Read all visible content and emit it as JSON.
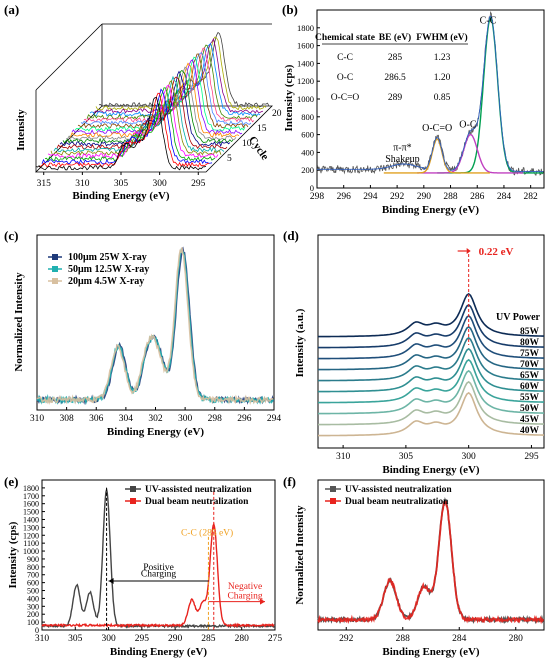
{
  "chart_data": [
    {
      "panel": "(a)",
      "type": "line",
      "title": "",
      "xlabel": "Binding Energy (eV)",
      "ylabel": "Intensity",
      "zlabel": "Cycle",
      "xticks": [
        "315",
        "310",
        "305",
        "300",
        "295"
      ],
      "zticks": [
        "5",
        "10",
        "15",
        "20"
      ],
      "xlim": [
        316,
        294
      ],
      "cycles": 22,
      "peak_positions_ev": [
        304.5,
        302.5,
        300.5
      ],
      "peak_heights": [
        0.33,
        0.32,
        1.0
      ],
      "colors": [
        "#000000",
        "#ff0000",
        "#0000ff",
        "#00aa00",
        "#ff00ff",
        "#888800",
        "#00aaaa",
        "#aa0000",
        "#000088",
        "#008800",
        "#888888",
        "#ff8800",
        "#8800ff",
        "#00ff88",
        "#884400",
        "#4488ff",
        "#ff4488",
        "#448800",
        "#0088ff",
        "#880088",
        "#aaaa00",
        "#444444"
      ]
    },
    {
      "panel": "(b)",
      "type": "line",
      "xlabel": "Binding Energy (eV)",
      "ylabel": "Intensity (cps)",
      "xlim": [
        298,
        281
      ],
      "ylim": [
        0,
        2000
      ],
      "xticks": [
        298,
        296,
        294,
        292,
        290,
        288,
        286,
        284,
        282
      ],
      "yticks": [
        0,
        200,
        400,
        600,
        800,
        1000,
        1200,
        1400,
        1600,
        1800
      ],
      "series": [
        {
          "name": "C-C",
          "center": 285,
          "fwhm": 1.23,
          "height": 1740,
          "color": "#00a050"
        },
        {
          "name": "O-C",
          "center": 286.5,
          "fwhm": 1.2,
          "height": 430,
          "color": "#c040c0"
        },
        {
          "name": "O-C=O",
          "center": 289,
          "fwhm": 0.85,
          "height": 380,
          "color": "#e0a020"
        }
      ],
      "baseline": 170,
      "shakeup": {
        "center": 291.5,
        "height": 60
      },
      "annotations": [
        "C-C",
        "O-C",
        "O-C=O",
        "π-π*",
        "Shakeup"
      ],
      "table": {
        "headers": [
          "Chemical state",
          "BE (eV)",
          "FWHM (eV)"
        ],
        "rows": [
          [
            "C-C",
            "285",
            "1.23"
          ],
          [
            "O-C",
            "286.5",
            "1.20"
          ],
          [
            "O-C=O",
            "289",
            "0.85"
          ]
        ]
      }
    },
    {
      "panel": "(c)",
      "type": "line",
      "xlabel": "Binding Energy (eV)",
      "ylabel": "Normalized Intensity",
      "xlim": [
        310,
        294
      ],
      "xticks": [
        310,
        308,
        306,
        304,
        302,
        300,
        298,
        296,
        294
      ],
      "series": [
        {
          "name": "100μm 25W X-ray",
          "color": "#1f3a7a"
        },
        {
          "name": "50μm 12.5W X-ray",
          "color": "#20b0b0"
        },
        {
          "name": "20μm 4.5W X-ray",
          "color": "#d8c0a0"
        }
      ],
      "peaks": [
        {
          "center": 304.5,
          "height": 0.36
        },
        {
          "center": 302.5,
          "height": 0.3
        },
        {
          "center": 301.8,
          "height": 0.26
        },
        {
          "center": 300.2,
          "height": 1.0
        }
      ]
    },
    {
      "panel": "(d)",
      "type": "line",
      "xlabel": "Binding Energy (eV)",
      "ylabel": "Intensity (a.u.)",
      "xlim": [
        312,
        294
      ],
      "xticks": [
        310,
        305,
        300,
        295
      ],
      "legend_title": "UV Power",
      "annotation": "0.22 eV",
      "series": [
        {
          "name": "85W",
          "color": "#0d2b55"
        },
        {
          "name": "80W",
          "color": "#173c6a"
        },
        {
          "name": "75W",
          "color": "#1f4e7a"
        },
        {
          "name": "70W",
          "color": "#256684"
        },
        {
          "name": "65W",
          "color": "#2b7c8c"
        },
        {
          "name": "60W",
          "color": "#2f8f92"
        },
        {
          "name": "55W",
          "color": "#3aa49b"
        },
        {
          "name": "50W",
          "color": "#6db5a6"
        },
        {
          "name": "45W",
          "color": "#a8bca2"
        },
        {
          "name": "40W",
          "color": "#cdb593"
        }
      ],
      "peaks": [
        {
          "center": 304.2,
          "height": 0.12
        },
        {
          "center": 302.6,
          "height": 0.08
        },
        {
          "center": 300.0,
          "height": 0.42
        }
      ]
    },
    {
      "panel": "(e)",
      "type": "line",
      "xlabel": "Binding Energy (eV)",
      "ylabel": "Intensity (cps)",
      "xlim": [
        310,
        275
      ],
      "ylim": [
        0,
        1900
      ],
      "xticks": [
        310,
        305,
        300,
        295,
        290,
        285,
        280,
        275
      ],
      "yticks": [
        0,
        100,
        200,
        300,
        400,
        500,
        600,
        700,
        800,
        900,
        1000,
        1100,
        1200,
        1300,
        1400,
        1500,
        1600,
        1700,
        1800
      ],
      "series": [
        {
          "name": "UV-assisted neutralization",
          "color": "#444444",
          "baseline": 50,
          "peaks": [
            {
              "center": 304.8,
              "height": 520
            },
            {
              "center": 302.8,
              "height": 430
            },
            {
              "center": 300.3,
              "height": 1720
            }
          ]
        },
        {
          "name": "Dual beam neutralization",
          "color": "#e8231e",
          "baseline": 60,
          "peaks": [
            {
              "center": 287.5,
              "height": 320
            },
            {
              "center": 285.8,
              "height": 280
            },
            {
              "center": 284.2,
              "height": 1280
            }
          ]
        }
      ],
      "annotations": [
        "C-C (285 eV)",
        "Positive",
        "Charging",
        "Negative",
        "Charging"
      ]
    },
    {
      "panel": "(f)",
      "type": "line",
      "xlabel": "Binding Energy (eV)",
      "ylabel": "Normalized Intensity",
      "xlim": [
        294,
        278
      ],
      "xticks": [
        292,
        288,
        284,
        280
      ],
      "series": [
        {
          "name": "UV-assisted neutralization",
          "color": "#555555"
        },
        {
          "name": "Dual beam neutralization",
          "color": "#e8231e"
        }
      ],
      "peaks": [
        {
          "center": 288.9,
          "height": 0.33
        },
        {
          "center": 286.5,
          "height": 0.28
        },
        {
          "center": 285.0,
          "height": 1.0
        }
      ]
    }
  ]
}
